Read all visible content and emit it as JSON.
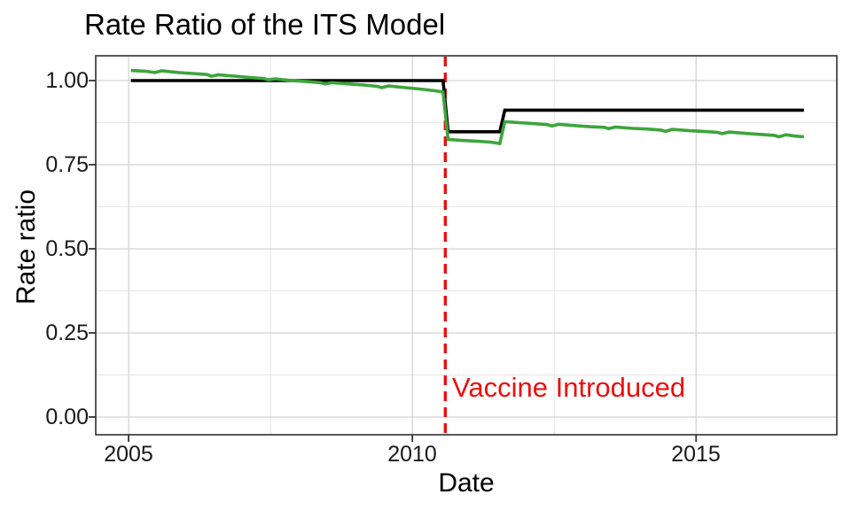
{
  "chart_data": {
    "type": "line",
    "title": "Rate Ratio of the ITS Model",
    "xlabel": "Date",
    "ylabel": "Rate ratio",
    "x_domain": [
      2004.42,
      2017.48
    ],
    "y_domain": [
      -0.0527,
      1.0737
    ],
    "grid": "major and minor, light gray, white panel, black border (theme_bw)",
    "legend": "none",
    "x_ticks": [
      {
        "value": 2005,
        "label": "2005"
      },
      {
        "value": 2010,
        "label": "2010"
      },
      {
        "value": 2015,
        "label": "2015"
      }
    ],
    "y_ticks": [
      {
        "value": 1.0,
        "label": "1.00"
      },
      {
        "value": 0.75,
        "label": "0.75"
      },
      {
        "value": 0.5,
        "label": "0.50"
      },
      {
        "value": 0.25,
        "label": "0.25"
      },
      {
        "value": 0.0,
        "label": "0.00"
      }
    ],
    "x_minor_gridlines": [
      2007.5,
      2012.5
    ],
    "y_minor_gridlines": [
      0.125,
      0.375,
      0.625,
      0.875
    ],
    "vline": {
      "x": 2010.58,
      "color": "#ee0e0e",
      "dash": [
        11,
        7
      ],
      "width": 3.4
    },
    "annotation": {
      "text": "Vaccine Introduced",
      "color": "#ee0e0e"
    },
    "series": [
      {
        "name": "model_fit_step",
        "color": "#000000",
        "width": 3.6,
        "points": [
          [
            2005.04,
            1.0
          ],
          [
            2010.54,
            1.0
          ],
          [
            2010.63,
            0.848
          ],
          [
            2011.54,
            0.848
          ],
          [
            2011.63,
            0.912
          ],
          [
            2016.9,
            0.912
          ]
        ]
      },
      {
        "name": "observed_rate_ratio",
        "color": "#3ca53c",
        "width": 3.6,
        "points": [
          [
            2005.04,
            1.03
          ],
          [
            2005.29,
            1.028
          ],
          [
            2005.46,
            1.024
          ],
          [
            2005.58,
            1.029
          ],
          [
            2005.88,
            1.024
          ],
          [
            2006.13,
            1.021
          ],
          [
            2006.38,
            1.018
          ],
          [
            2006.46,
            1.013
          ],
          [
            2006.58,
            1.017
          ],
          [
            2006.88,
            1.013
          ],
          [
            2007.13,
            1.009
          ],
          [
            2007.38,
            1.006
          ],
          [
            2007.46,
            1.002
          ],
          [
            2007.58,
            1.005
          ],
          [
            2007.88,
            1.0
          ],
          [
            2008.13,
            0.997
          ],
          [
            2008.38,
            0.994
          ],
          [
            2008.46,
            0.99
          ],
          [
            2008.58,
            0.994
          ],
          [
            2008.88,
            0.99
          ],
          [
            2009.13,
            0.987
          ],
          [
            2009.38,
            0.983
          ],
          [
            2009.46,
            0.979
          ],
          [
            2009.58,
            0.984
          ],
          [
            2009.88,
            0.979
          ],
          [
            2010.13,
            0.975
          ],
          [
            2010.38,
            0.97
          ],
          [
            2010.54,
            0.966
          ],
          [
            2010.63,
            0.825
          ],
          [
            2010.88,
            0.822
          ],
          [
            2011.13,
            0.82
          ],
          [
            2011.38,
            0.817
          ],
          [
            2011.54,
            0.813
          ],
          [
            2011.63,
            0.878
          ],
          [
            2011.88,
            0.875
          ],
          [
            2012.13,
            0.872
          ],
          [
            2012.38,
            0.869
          ],
          [
            2012.46,
            0.865
          ],
          [
            2012.58,
            0.87
          ],
          [
            2012.88,
            0.866
          ],
          [
            2013.13,
            0.863
          ],
          [
            2013.38,
            0.861
          ],
          [
            2013.46,
            0.857
          ],
          [
            2013.58,
            0.862
          ],
          [
            2013.88,
            0.858
          ],
          [
            2014.13,
            0.856
          ],
          [
            2014.38,
            0.853
          ],
          [
            2014.46,
            0.849
          ],
          [
            2014.58,
            0.855
          ],
          [
            2014.88,
            0.851
          ],
          [
            2015.13,
            0.849
          ],
          [
            2015.38,
            0.846
          ],
          [
            2015.46,
            0.842
          ],
          [
            2015.58,
            0.847
          ],
          [
            2015.88,
            0.843
          ],
          [
            2016.13,
            0.84
          ],
          [
            2016.38,
            0.837
          ],
          [
            2016.46,
            0.833
          ],
          [
            2016.58,
            0.839
          ],
          [
            2016.75,
            0.835
          ],
          [
            2016.9,
            0.833
          ]
        ]
      }
    ]
  }
}
